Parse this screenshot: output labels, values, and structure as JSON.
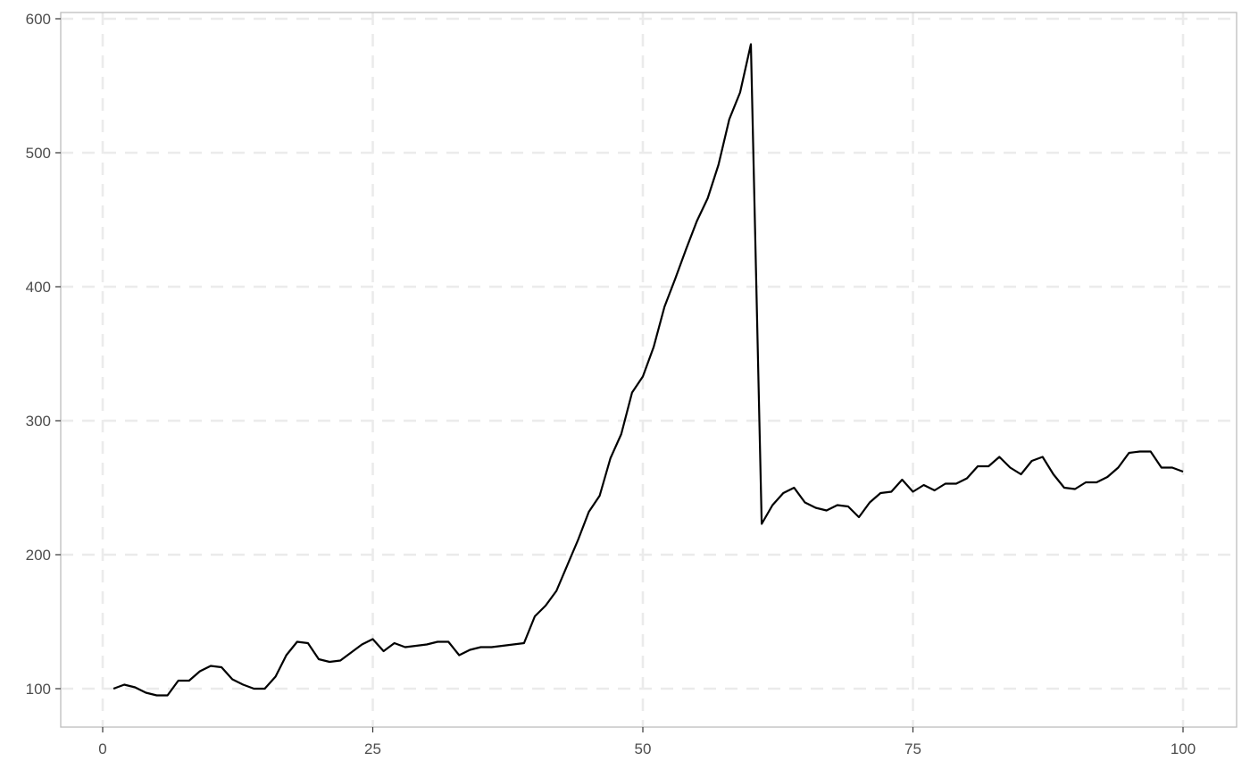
{
  "chart_data": {
    "type": "line",
    "title": "",
    "xlabel": "",
    "ylabel": "",
    "xlim": [
      0,
      100
    ],
    "ylim": [
      100,
      600
    ],
    "x_ticks": [
      0,
      25,
      50,
      75,
      100
    ],
    "y_ticks": [
      100,
      200,
      300,
      400,
      500,
      600
    ],
    "x_tick_labels": [
      "0",
      "25",
      "50",
      "75",
      "100"
    ],
    "y_tick_labels": [
      "100",
      "200",
      "300",
      "400",
      "500",
      "600"
    ],
    "grid": "dashed",
    "legend": "none",
    "colors": {
      "line": "#000000",
      "grid": "#ebebeb",
      "panel_border": "#bdbdbd",
      "tick_text": "#4d4d4d",
      "background": "#ffffff"
    },
    "series": [
      {
        "x": [
          1,
          2,
          3,
          4,
          5,
          6,
          7,
          8,
          9,
          10,
          11,
          12,
          13,
          14,
          15,
          16,
          17,
          18,
          19,
          20,
          21,
          22,
          23,
          24,
          25,
          26,
          27,
          28,
          29,
          30,
          31,
          32,
          33,
          34,
          35,
          36,
          37,
          38,
          39,
          40,
          41,
          42,
          43,
          44,
          45,
          46,
          47,
          48,
          49,
          50,
          51,
          52,
          53,
          54,
          55,
          56,
          57,
          58,
          59,
          60,
          61,
          62,
          63,
          64,
          65,
          66,
          67,
          68,
          69,
          70,
          71,
          72,
          73,
          74,
          75,
          76,
          77,
          78,
          79,
          80,
          81,
          82,
          83,
          84,
          85,
          86,
          87,
          88,
          89,
          90,
          91,
          92,
          93,
          94,
          95,
          96,
          97,
          98,
          99,
          100
        ],
        "y": [
          100,
          103,
          101,
          97,
          95,
          95,
          106,
          106,
          113,
          117,
          116,
          107,
          103,
          100,
          100,
          109,
          125,
          135,
          134,
          122,
          120,
          121,
          127,
          133,
          137,
          128,
          134,
          131,
          132,
          133,
          135,
          135,
          125,
          129,
          131,
          131,
          132,
          133,
          134,
          154,
          162,
          173,
          192,
          211,
          232,
          244,
          272,
          290,
          321,
          333,
          355,
          385,
          406,
          428,
          449,
          466,
          491,
          525,
          545,
          581,
          223,
          237,
          246,
          250,
          239,
          235,
          233,
          237,
          236,
          228,
          239,
          246,
          247,
          256,
          247,
          252,
          248,
          253,
          253,
          257,
          266,
          266,
          273,
          265,
          260,
          270,
          273,
          260,
          250,
          249,
          254,
          254,
          258,
          265,
          276,
          277,
          277,
          265,
          265,
          262
        ]
      }
    ]
  }
}
